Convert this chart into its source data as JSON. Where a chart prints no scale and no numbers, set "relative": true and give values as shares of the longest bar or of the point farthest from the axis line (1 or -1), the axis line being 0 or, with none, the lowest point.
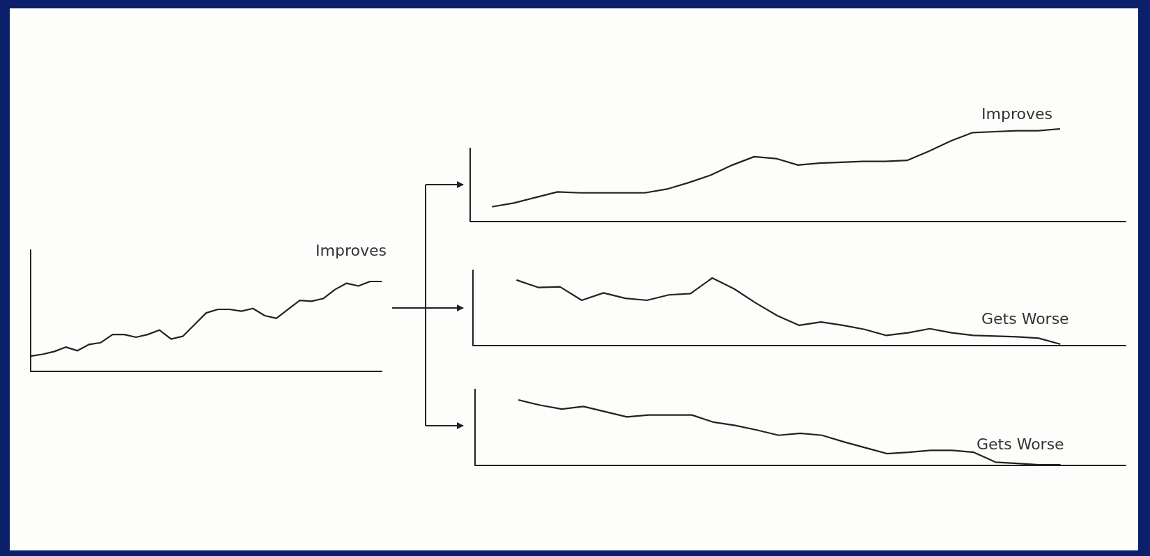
{
  "chart_data": [
    {
      "type": "line",
      "relative": true,
      "color": "#222222",
      "marker": "none",
      "annotations": [
        "Improves"
      ],
      "categories": [
        null,
        null,
        null,
        null,
        null,
        null,
        null,
        null,
        null,
        null,
        null,
        null,
        null,
        null,
        null,
        null,
        null,
        null,
        null,
        null,
        null,
        null,
        null,
        null,
        null,
        null,
        null,
        null,
        null,
        null,
        null
      ],
      "values": [
        0.17,
        0.19,
        0.22,
        0.27,
        0.23,
        0.3,
        0.32,
        0.41,
        0.41,
        0.38,
        0.41,
        0.46,
        0.36,
        0.39,
        0.52,
        0.65,
        0.69,
        0.69,
        0.67,
        0.7,
        0.62,
        0.59,
        0.69,
        0.79,
        0.78,
        0.81,
        0.91,
        0.98,
        0.95,
        1,
        1
      ]
    },
    {
      "type": "line",
      "relative": true,
      "color": "#222222",
      "marker": "none",
      "annotations": [
        "Improves"
      ],
      "categories": [
        null,
        null,
        null,
        null,
        null,
        null,
        null,
        null,
        null,
        null,
        null,
        null,
        null,
        null,
        null,
        null,
        null,
        null,
        null,
        null,
        null,
        null,
        null,
        null,
        null,
        null,
        null,
        null,
        null,
        null,
        null
      ],
      "values": [
        null,
        0.16,
        0.2,
        0.26,
        0.32,
        0.31,
        0.31,
        0.31,
        0.31,
        0.35,
        0.42,
        0.5,
        0.61,
        0.7,
        0.68,
        0.61,
        0.63,
        0.64,
        0.65,
        0.65,
        0.66,
        0.76,
        0.87,
        0.96,
        0.97,
        0.98,
        0.98,
        1,
        null,
        null,
        null
      ]
    },
    {
      "type": "line",
      "relative": true,
      "color": "#222222",
      "marker": "none",
      "annotations": [
        "Gets Worse"
      ],
      "categories": [
        null,
        null,
        null,
        null,
        null,
        null,
        null,
        null,
        null,
        null,
        null,
        null,
        null,
        null,
        null,
        null,
        null,
        null,
        null,
        null,
        null,
        null,
        null,
        null,
        null,
        null,
        null,
        null,
        null,
        null,
        null
      ],
      "values": [
        null,
        null,
        0.97,
        0.86,
        0.87,
        0.67,
        0.78,
        0.7,
        0.67,
        0.75,
        0.77,
        1,
        0.84,
        0.63,
        0.44,
        0.3,
        0.35,
        0.3,
        0.24,
        0.15,
        0.19,
        0.25,
        0.19,
        0.15,
        0.14,
        0.13,
        0.11,
        0.02,
        null,
        null,
        null
      ]
    },
    {
      "type": "line",
      "relative": true,
      "color": "#222222",
      "marker": "none",
      "annotations": [
        "Gets Worse"
      ],
      "categories": [
        null,
        null,
        null,
        null,
        null,
        null,
        null,
        null,
        null,
        null,
        null,
        null,
        null,
        null,
        null,
        null,
        null,
        null,
        null,
        null,
        null,
        null,
        null,
        null,
        null,
        null,
        null,
        null,
        null,
        null,
        null
      ],
      "values": [
        null,
        null,
        1,
        0.92,
        0.86,
        0.9,
        0.82,
        0.74,
        0.77,
        0.77,
        0.77,
        0.66,
        0.61,
        0.54,
        0.46,
        0.49,
        0.46,
        0.36,
        0.27,
        0.18,
        0.2,
        0.23,
        0.23,
        0.2,
        0.05,
        0.03,
        0.01,
        0.01,
        null,
        null,
        null
      ]
    }
  ]
}
